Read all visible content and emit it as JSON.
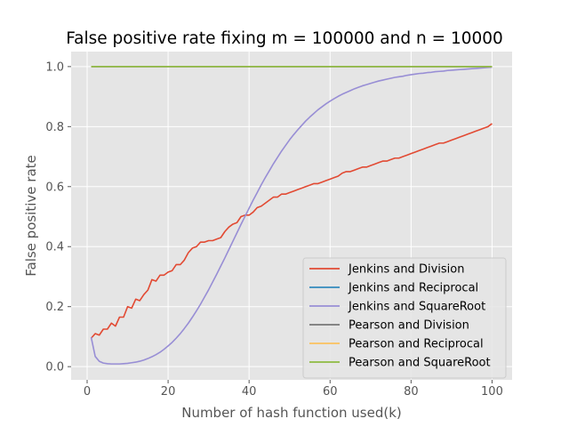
{
  "chart_data": {
    "type": "line",
    "title": "False positive rate fixing m = 100000 and n = 10000",
    "xlabel": "Number of hash function used(k)",
    "ylabel": "False positive rate",
    "xlim": [
      -3.95,
      104.95
    ],
    "ylim": [
      -0.044,
      1.05
    ],
    "xticks": [
      0,
      20,
      40,
      60,
      80,
      100
    ],
    "yticks": [
      0.0,
      0.2,
      0.4,
      0.6,
      0.8,
      1.0
    ],
    "xtick_labels": [
      "0",
      "20",
      "40",
      "60",
      "80",
      "100"
    ],
    "ytick_labels": [
      "0.0",
      "0.2",
      "0.4",
      "0.6",
      "0.8",
      "1.0"
    ],
    "grid": true,
    "legend_position": "lower right",
    "x": [
      1,
      2,
      3,
      4,
      5,
      6,
      7,
      8,
      9,
      10,
      11,
      12,
      13,
      14,
      15,
      16,
      17,
      18,
      19,
      20,
      21,
      22,
      23,
      24,
      25,
      26,
      27,
      28,
      29,
      30,
      31,
      32,
      33,
      34,
      35,
      36,
      37,
      38,
      39,
      40,
      41,
      42,
      43,
      44,
      45,
      46,
      47,
      48,
      49,
      50,
      51,
      52,
      53,
      54,
      55,
      56,
      57,
      58,
      59,
      60,
      61,
      62,
      63,
      64,
      65,
      66,
      67,
      68,
      69,
      70,
      71,
      72,
      73,
      74,
      75,
      76,
      77,
      78,
      79,
      80,
      81,
      82,
      83,
      84,
      85,
      86,
      87,
      88,
      89,
      90,
      91,
      92,
      93,
      94,
      95,
      96,
      97,
      98,
      99,
      100
    ],
    "series": [
      {
        "name": "Jenkins and Division",
        "color": "#e24a33",
        "values": [
          0.095,
          0.11,
          0.105,
          0.125,
          0.125,
          0.145,
          0.135,
          0.165,
          0.165,
          0.2,
          0.195,
          0.225,
          0.22,
          0.24,
          0.255,
          0.29,
          0.285,
          0.305,
          0.305,
          0.315,
          0.32,
          0.34,
          0.34,
          0.355,
          0.38,
          0.395,
          0.4,
          0.415,
          0.415,
          0.42,
          0.42,
          0.425,
          0.43,
          0.45,
          0.465,
          0.475,
          0.48,
          0.5,
          0.505,
          0.505,
          0.515,
          0.53,
          0.535,
          0.545,
          0.555,
          0.565,
          0.565,
          0.575,
          0.575,
          0.58,
          0.585,
          0.59,
          0.595,
          0.6,
          0.605,
          0.61,
          0.61,
          0.615,
          0.62,
          0.625,
          0.63,
          0.635,
          0.645,
          0.65,
          0.65,
          0.655,
          0.66,
          0.665,
          0.665,
          0.67,
          0.675,
          0.68,
          0.685,
          0.685,
          0.69,
          0.695,
          0.695,
          0.7,
          0.705,
          0.71,
          0.715,
          0.72,
          0.725,
          0.73,
          0.735,
          0.74,
          0.745,
          0.745,
          0.75,
          0.755,
          0.76,
          0.765,
          0.77,
          0.775,
          0.78,
          0.785,
          0.79,
          0.795,
          0.8,
          0.81
        ]
      },
      {
        "name": "Jenkins and Reciprocal",
        "color": "#348abd",
        "values": [
          1,
          1,
          1,
          1,
          1,
          1,
          1,
          1,
          1,
          1,
          1,
          1,
          1,
          1,
          1,
          1,
          1,
          1,
          1,
          1,
          1,
          1,
          1,
          1,
          1,
          1,
          1,
          1,
          1,
          1,
          1,
          1,
          1,
          1,
          1,
          1,
          1,
          1,
          1,
          1,
          1,
          1,
          1,
          1,
          1,
          1,
          1,
          1,
          1,
          1,
          1,
          1,
          1,
          1,
          1,
          1,
          1,
          1,
          1,
          1,
          1,
          1,
          1,
          1,
          1,
          1,
          1,
          1,
          1,
          1,
          1,
          1,
          1,
          1,
          1,
          1,
          1,
          1,
          1,
          1,
          1,
          1,
          1,
          1,
          1,
          1,
          1,
          1,
          1,
          1,
          1,
          1,
          1,
          1,
          1,
          1,
          1,
          1,
          1,
          1
        ]
      },
      {
        "name": "Jenkins and SquareRoot",
        "color": "#988ed5",
        "values": [
          0.098,
          0.034,
          0.018,
          0.012,
          0.01,
          0.009,
          0.009,
          0.009,
          0.01,
          0.011,
          0.013,
          0.015,
          0.018,
          0.022,
          0.027,
          0.033,
          0.04,
          0.048,
          0.058,
          0.069,
          0.081,
          0.095,
          0.11,
          0.127,
          0.145,
          0.165,
          0.186,
          0.208,
          0.232,
          0.256,
          0.282,
          0.308,
          0.335,
          0.362,
          0.39,
          0.418,
          0.446,
          0.474,
          0.501,
          0.528,
          0.555,
          0.58,
          0.606,
          0.63,
          0.653,
          0.676,
          0.697,
          0.718,
          0.737,
          0.756,
          0.773,
          0.789,
          0.804,
          0.819,
          0.832,
          0.844,
          0.856,
          0.866,
          0.876,
          0.885,
          0.893,
          0.901,
          0.908,
          0.914,
          0.92,
          0.926,
          0.931,
          0.936,
          0.94,
          0.944,
          0.948,
          0.952,
          0.955,
          0.958,
          0.961,
          0.964,
          0.966,
          0.968,
          0.971,
          0.973,
          0.975,
          0.977,
          0.978,
          0.98,
          0.981,
          0.983,
          0.984,
          0.985,
          0.987,
          0.988,
          0.989,
          0.99,
          0.991,
          0.992,
          0.993,
          0.994,
          0.995,
          0.996,
          0.997,
          0.998
        ]
      },
      {
        "name": "Pearson and Division",
        "color": "#777777",
        "values": [
          1,
          1,
          1,
          1,
          1,
          1,
          1,
          1,
          1,
          1,
          1,
          1,
          1,
          1,
          1,
          1,
          1,
          1,
          1,
          1,
          1,
          1,
          1,
          1,
          1,
          1,
          1,
          1,
          1,
          1,
          1,
          1,
          1,
          1,
          1,
          1,
          1,
          1,
          1,
          1,
          1,
          1,
          1,
          1,
          1,
          1,
          1,
          1,
          1,
          1,
          1,
          1,
          1,
          1,
          1,
          1,
          1,
          1,
          1,
          1,
          1,
          1,
          1,
          1,
          1,
          1,
          1,
          1,
          1,
          1,
          1,
          1,
          1,
          1,
          1,
          1,
          1,
          1,
          1,
          1,
          1,
          1,
          1,
          1,
          1,
          1,
          1,
          1,
          1,
          1,
          1,
          1,
          1,
          1,
          1,
          1,
          1,
          1,
          1,
          1
        ]
      },
      {
        "name": "Pearson and Reciprocal",
        "color": "#fbc15e",
        "values": [
          1,
          1,
          1,
          1,
          1,
          1,
          1,
          1,
          1,
          1,
          1,
          1,
          1,
          1,
          1,
          1,
          1,
          1,
          1,
          1,
          1,
          1,
          1,
          1,
          1,
          1,
          1,
          1,
          1,
          1,
          1,
          1,
          1,
          1,
          1,
          1,
          1,
          1,
          1,
          1,
          1,
          1,
          1,
          1,
          1,
          1,
          1,
          1,
          1,
          1,
          1,
          1,
          1,
          1,
          1,
          1,
          1,
          1,
          1,
          1,
          1,
          1,
          1,
          1,
          1,
          1,
          1,
          1,
          1,
          1,
          1,
          1,
          1,
          1,
          1,
          1,
          1,
          1,
          1,
          1,
          1,
          1,
          1,
          1,
          1,
          1,
          1,
          1,
          1,
          1,
          1,
          1,
          1,
          1,
          1,
          1,
          1,
          1,
          1,
          1
        ]
      },
      {
        "name": "Pearson and SquareRoot",
        "color": "#8eba42",
        "values": [
          1,
          1,
          1,
          1,
          1,
          1,
          1,
          1,
          1,
          1,
          1,
          1,
          1,
          1,
          1,
          1,
          1,
          1,
          1,
          1,
          1,
          1,
          1,
          1,
          1,
          1,
          1,
          1,
          1,
          1,
          1,
          1,
          1,
          1,
          1,
          1,
          1,
          1,
          1,
          1,
          1,
          1,
          1,
          1,
          1,
          1,
          1,
          1,
          1,
          1,
          1,
          1,
          1,
          1,
          1,
          1,
          1,
          1,
          1,
          1,
          1,
          1,
          1,
          1,
          1,
          1,
          1,
          1,
          1,
          1,
          1,
          1,
          1,
          1,
          1,
          1,
          1,
          1,
          1,
          1,
          1,
          1,
          1,
          1,
          1,
          1,
          1,
          1,
          1,
          1,
          1,
          1,
          1,
          1,
          1,
          1,
          1,
          1,
          1,
          1
        ]
      }
    ]
  }
}
